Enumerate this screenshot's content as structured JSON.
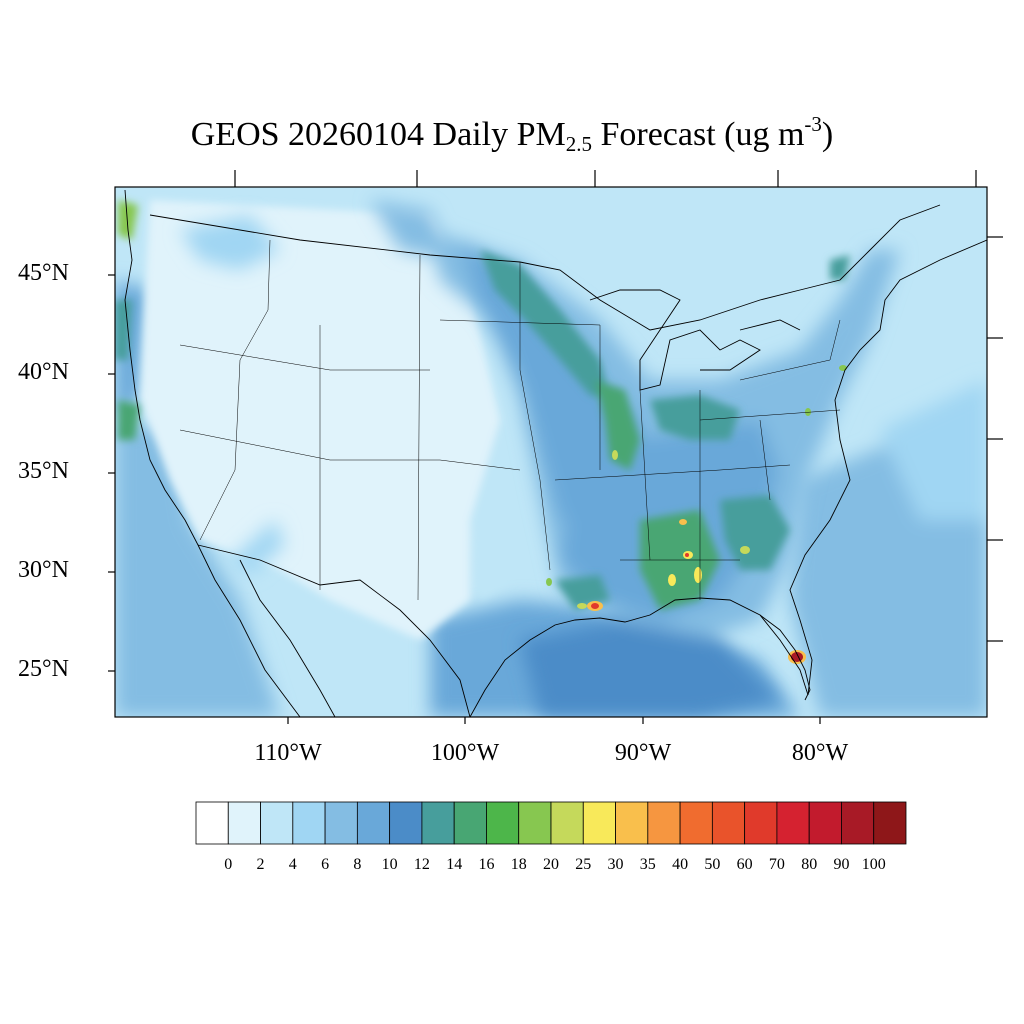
{
  "title": {
    "prefix": "GEOS 20260104 Daily PM",
    "sub": "2.5",
    "middle": " Forecast (ug m",
    "sup": "-3",
    "suffix": ")"
  },
  "map": {
    "lat_labels": [
      "45°N",
      "40°N",
      "35°N",
      "30°N",
      "25°N"
    ],
    "lon_labels": [
      "110°W",
      "100°W",
      "90°W",
      "80°W"
    ]
  },
  "colorbar": {
    "labels": [
      "0",
      "2",
      "4",
      "6",
      "8",
      "10",
      "12",
      "14",
      "16",
      "18",
      "20",
      "25",
      "30",
      "35",
      "40",
      "50",
      "60",
      "70",
      "80",
      "90",
      "100"
    ],
    "colors": [
      "#ffffff",
      "#e0f3fb",
      "#bfe6f7",
      "#a0d6f3",
      "#84bde3",
      "#69a8d9",
      "#4b8cc8",
      "#479e9c",
      "#48a673",
      "#4db64a",
      "#87c750",
      "#c5d95b",
      "#f8e95a",
      "#f9bf4c",
      "#f69640",
      "#f06c2f",
      "#e9532b",
      "#e03a2b",
      "#d52230",
      "#c21b2d",
      "#a81a26",
      "#8e1719"
    ]
  }
}
